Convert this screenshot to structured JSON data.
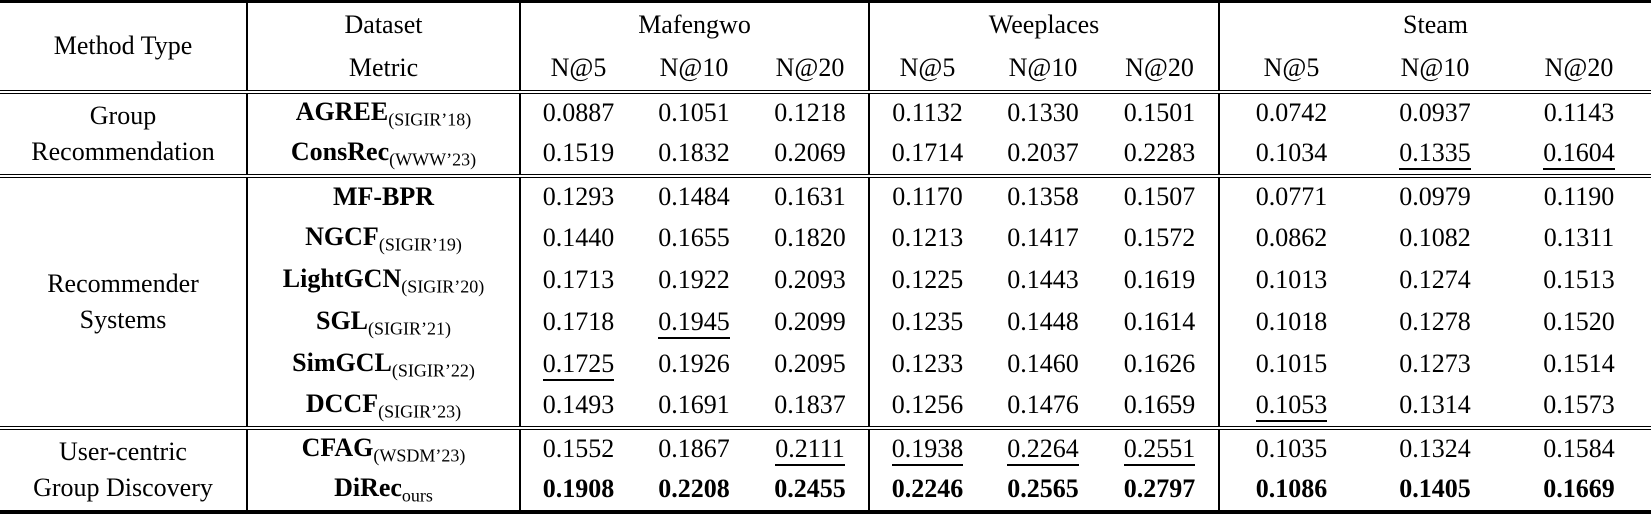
{
  "table": {
    "header": {
      "method_type": "Method Type",
      "dataset_label": "Dataset",
      "metric_label": "Metric",
      "dataset_groups": [
        {
          "name": "Mafengwo",
          "metrics": [
            "N@5",
            "N@10",
            "N@20"
          ]
        },
        {
          "name": "Weeplaces",
          "metrics": [
            "N@5",
            "N@10",
            "N@20"
          ]
        },
        {
          "name": "Steam",
          "metrics": [
            "N@5",
            "N@10",
            "N@20"
          ]
        }
      ]
    },
    "sections": [
      {
        "type_lines": [
          "Group",
          "Recommendation"
        ],
        "rows": [
          {
            "method": "AGREE",
            "venue": "(SIGIR’18)",
            "values": [
              "0.0887",
              "0.1051",
              "0.1218",
              "0.1132",
              "0.1330",
              "0.1501",
              "0.0742",
              "0.0937",
              "0.1143"
            ],
            "styles": [
              "",
              "",
              "",
              "",
              "",
              "",
              "",
              "",
              ""
            ]
          },
          {
            "method": "ConsRec",
            "venue": "(WWW’23)",
            "values": [
              "0.1519",
              "0.1832",
              "0.2069",
              "0.1714",
              "0.2037",
              "0.2283",
              "0.1034",
              "0.1335",
              "0.1604"
            ],
            "styles": [
              "",
              "",
              "",
              "",
              "",
              "",
              "",
              "u",
              "u"
            ]
          }
        ]
      },
      {
        "type_lines": [
          "Recommender",
          "Systems"
        ],
        "rows": [
          {
            "method": "MF-BPR",
            "venue": "",
            "values": [
              "0.1293",
              "0.1484",
              "0.1631",
              "0.1170",
              "0.1358",
              "0.1507",
              "0.0771",
              "0.0979",
              "0.1190"
            ],
            "styles": [
              "",
              "",
              "",
              "",
              "",
              "",
              "",
              "",
              ""
            ]
          },
          {
            "method": "NGCF",
            "venue": "(SIGIR’19)",
            "values": [
              "0.1440",
              "0.1655",
              "0.1820",
              "0.1213",
              "0.1417",
              "0.1572",
              "0.0862",
              "0.1082",
              "0.1311"
            ],
            "styles": [
              "",
              "",
              "",
              "",
              "",
              "",
              "",
              "",
              ""
            ]
          },
          {
            "method": "LightGCN",
            "venue": "(SIGIR’20)",
            "values": [
              "0.1713",
              "0.1922",
              "0.2093",
              "0.1225",
              "0.1443",
              "0.1619",
              "0.1013",
              "0.1274",
              "0.1513"
            ],
            "styles": [
              "",
              "",
              "",
              "",
              "",
              "",
              "",
              "",
              ""
            ]
          },
          {
            "method": "SGL",
            "venue": "(SIGIR’21)",
            "values": [
              "0.1718",
              "0.1945",
              "0.2099",
              "0.1235",
              "0.1448",
              "0.1614",
              "0.1018",
              "0.1278",
              "0.1520"
            ],
            "styles": [
              "",
              "u",
              "",
              "",
              "",
              "",
              "",
              "",
              ""
            ]
          },
          {
            "method": "SimGCL",
            "venue": "(SIGIR’22)",
            "values": [
              "0.1725",
              "0.1926",
              "0.2095",
              "0.1233",
              "0.1460",
              "0.1626",
              "0.1015",
              "0.1273",
              "0.1514"
            ],
            "styles": [
              "u",
              "",
              "",
              "",
              "",
              "",
              "",
              "",
              ""
            ]
          },
          {
            "method": "DCCF",
            "venue": "(SIGIR’23)",
            "values": [
              "0.1493",
              "0.1691",
              "0.1837",
              "0.1256",
              "0.1476",
              "0.1659",
              "0.1053",
              "0.1314",
              "0.1573"
            ],
            "styles": [
              "",
              "",
              "",
              "",
              "",
              "",
              "u",
              "",
              ""
            ]
          }
        ]
      },
      {
        "type_lines": [
          "User-centric",
          "Group Discovery"
        ],
        "rows": [
          {
            "method": "CFAG",
            "venue": "(WSDM’23)",
            "values": [
              "0.1552",
              "0.1867",
              "0.2111",
              "0.1938",
              "0.2264",
              "0.2551",
              "0.1035",
              "0.1324",
              "0.1584"
            ],
            "styles": [
              "",
              "",
              "u",
              "u",
              "u",
              "u",
              "",
              "",
              ""
            ]
          },
          {
            "method": "DiRec",
            "venue": "ours",
            "values": [
              "0.1908",
              "0.2208",
              "0.2455",
              "0.2246",
              "0.2565",
              "0.2797",
              "0.1086",
              "0.1405",
              "0.1669"
            ],
            "styles": [
              "b",
              "b",
              "b",
              "b",
              "b",
              "b",
              "b",
              "b",
              "b"
            ]
          }
        ]
      }
    ]
  }
}
